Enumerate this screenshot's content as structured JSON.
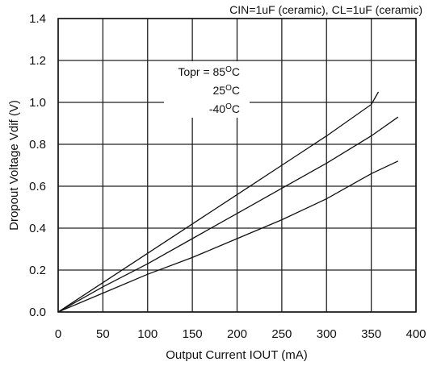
{
  "chart_data": {
    "type": "line",
    "title": "",
    "subtitle": "CIN=1uF (ceramic), CL=1uF (ceramic)",
    "xlabel": "Output Current IOUT (mA)",
    "ylabel": "Dropout Voltage Vdif (V)",
    "xlim": [
      0,
      400
    ],
    "ylim": [
      0,
      1.4
    ],
    "xticks": [
      "0",
      "50",
      "100",
      "150",
      "200",
      "250",
      "300",
      "350",
      "400"
    ],
    "yticks": [
      "0.0",
      "0.2",
      "0.4",
      "0.6",
      "0.8",
      "1.0",
      "1.2",
      "1.4"
    ],
    "grid": true,
    "legend": {
      "title": "Topr = 85",
      "labels": [
        "Topr = 85",
        "25",
        "-40"
      ],
      "unit_sup": "O",
      "unit": "C"
    },
    "series": [
      {
        "name": "Topr = 85°C",
        "x": [
          0,
          50,
          100,
          150,
          200,
          250,
          300,
          350,
          358
        ],
        "y": [
          0,
          0.14,
          0.28,
          0.42,
          0.56,
          0.7,
          0.84,
          0.99,
          1.05
        ]
      },
      {
        "name": "25°C",
        "x": [
          0,
          50,
          100,
          150,
          200,
          250,
          300,
          350,
          380
        ],
        "y": [
          0,
          0.12,
          0.23,
          0.35,
          0.47,
          0.59,
          0.71,
          0.84,
          0.93
        ]
      },
      {
        "name": "-40°C",
        "x": [
          0,
          50,
          100,
          150,
          200,
          250,
          300,
          350,
          380
        ],
        "y": [
          0,
          0.09,
          0.18,
          0.26,
          0.35,
          0.44,
          0.54,
          0.66,
          0.72
        ]
      }
    ]
  }
}
